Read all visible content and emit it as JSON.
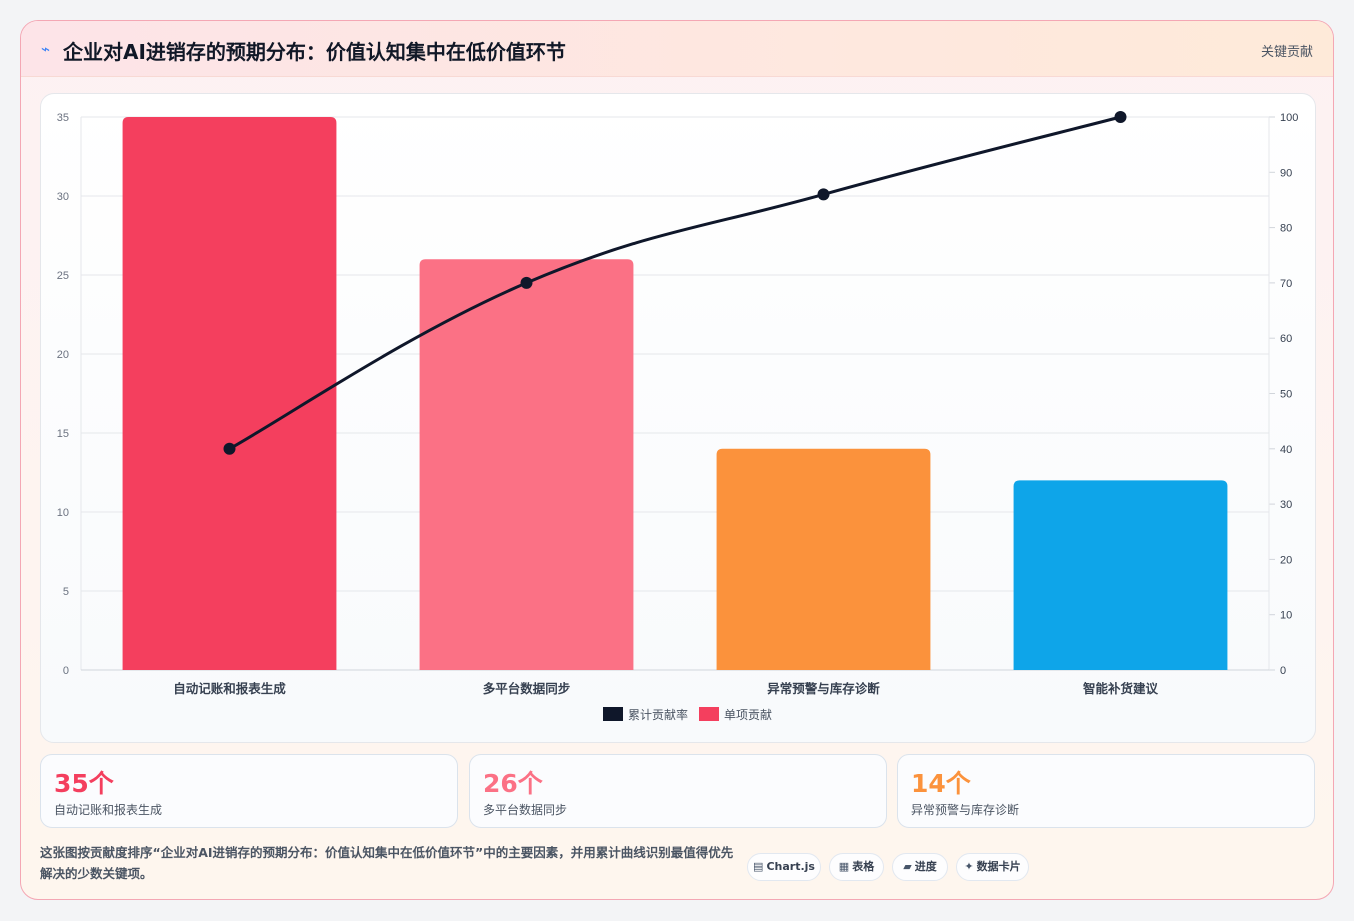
{
  "header": {
    "icon": "sparkline-icon",
    "title": "企业对AI进销存的预期分布：价值认知集中在低价值环节",
    "tag": "关键贡献"
  },
  "chart_data": {
    "type": "bar",
    "categories": [
      "自动记账和报表生成",
      "多平台数据同步",
      "异常预警与库存诊断",
      "智能补货建议"
    ],
    "series": [
      {
        "name": "单项贡献",
        "type": "bar",
        "axis": "left",
        "values": [
          35,
          26,
          14,
          12
        ],
        "colors": [
          "#f43f5e",
          "#fb7185",
          "#fb923c",
          "#0ea5e9"
        ]
      },
      {
        "name": "累计贡献率",
        "type": "line",
        "axis": "right",
        "values": [
          40,
          70,
          86,
          100
        ],
        "color": "#0f172a"
      }
    ],
    "y_left": {
      "lim": [
        0,
        35
      ],
      "ticks": [
        0,
        5,
        10,
        15,
        20,
        25,
        30,
        35
      ]
    },
    "y_right": {
      "lim": [
        0,
        100
      ],
      "ticks": [
        0,
        10,
        20,
        30,
        40,
        50,
        60,
        70,
        80,
        90,
        100
      ]
    },
    "legend": [
      {
        "label": "累计贡献率",
        "color": "#0f172a"
      },
      {
        "label": "单项贡献",
        "color": "#f43f5e"
      }
    ],
    "legend_position": "bottom",
    "grid": true
  },
  "stats": [
    {
      "value": "35个",
      "label": "自动记账和报表生成",
      "color": "#f43f5e"
    },
    {
      "value": "26个",
      "label": "多平台数据同步",
      "color": "#fb7185"
    },
    {
      "value": "14个",
      "label": "异常预警与库存诊断",
      "color": "#fb923c"
    }
  ],
  "footnote": "这张图按贡献度排序“企业对AI进销存的预期分布：价值认知集中在低价值环节”中的主要因素，并用累计曲线识别最值得优先解决的少数关键项。",
  "chips": [
    {
      "icon": "chart-icon",
      "label": "Chart.js"
    },
    {
      "icon": "table-icon",
      "label": "表格"
    },
    {
      "icon": "progress-icon",
      "label": "进度"
    },
    {
      "icon": "data-card-icon",
      "label": "数据卡片"
    }
  ]
}
